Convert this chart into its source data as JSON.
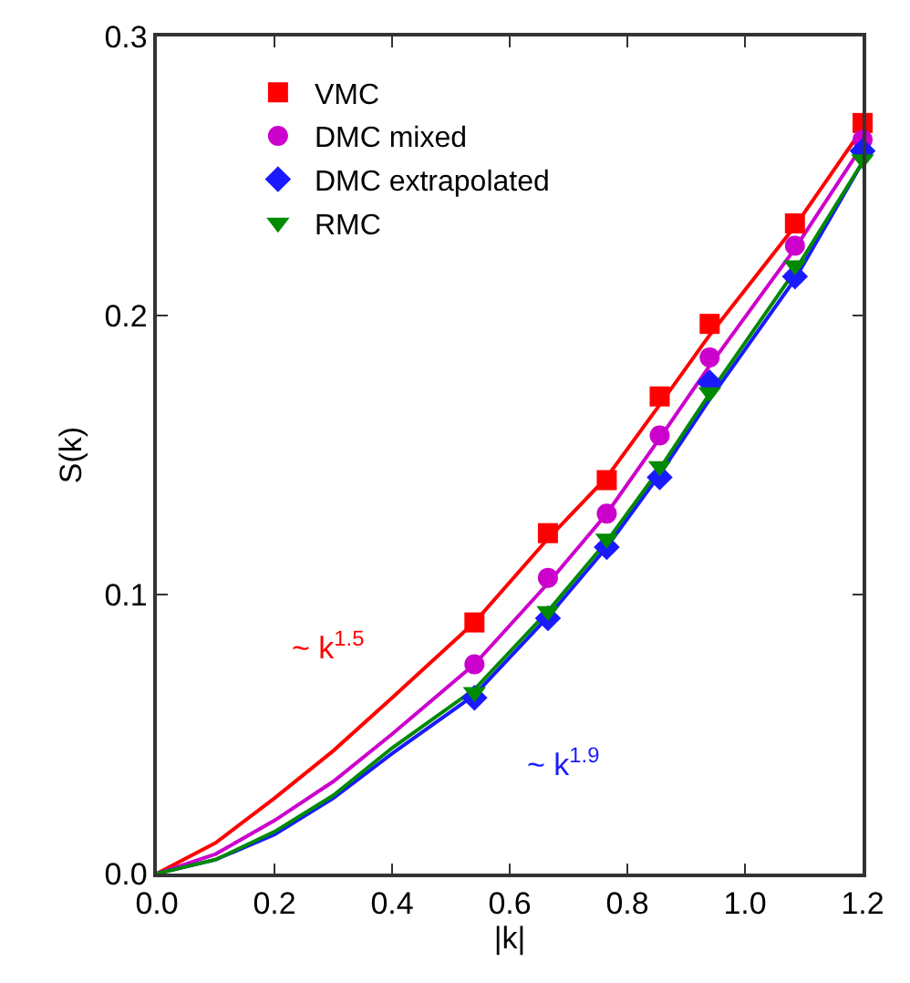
{
  "chart_data": {
    "type": "scatter",
    "xlabel": "|k|",
    "ylabel": "S(k)",
    "xlim": [
      0,
      1.2
    ],
    "ylim": [
      0,
      0.3
    ],
    "xticks": [
      {
        "value": 0,
        "label": "0.0"
      },
      {
        "value": 0.2,
        "label": "0.2"
      },
      {
        "value": 0.4,
        "label": "0.4"
      },
      {
        "value": 0.6,
        "label": "0.6"
      },
      {
        "value": 0.8,
        "label": "0.8"
      },
      {
        "value": 1.0,
        "label": "1.0"
      },
      {
        "value": 1.2,
        "label": "1.2"
      }
    ],
    "yticks": [
      {
        "value": 0,
        "label": "0.0"
      },
      {
        "value": 0.1,
        "label": "0.1"
      },
      {
        "value": 0.2,
        "label": "0.2"
      },
      {
        "value": 0.3,
        "label": "0.3"
      }
    ],
    "legend": "top left",
    "x": [
      0.54,
      0.665,
      0.765,
      0.855,
      0.94,
      1.085,
      1.2
    ],
    "series": [
      {
        "type": "line",
        "color": "#ff0000",
        "x": [
          0,
          0.1,
          0.2,
          0.3,
          0.4,
          0.54,
          0.665,
          0.765,
          0.855,
          0.94,
          1.085,
          1.2
        ],
        "values": [
          0,
          0.011,
          0.027,
          0.044,
          0.063,
          0.09,
          0.12,
          0.142,
          0.168,
          0.193,
          0.232,
          0.267
        ]
      },
      {
        "type": "line",
        "color": "#cc00cc",
        "x": [
          0,
          0.1,
          0.2,
          0.3,
          0.4,
          0.54,
          0.665,
          0.765,
          0.855,
          0.94,
          1.085,
          1.2
        ],
        "values": [
          0,
          0.007,
          0.019,
          0.033,
          0.05,
          0.075,
          0.104,
          0.129,
          0.156,
          0.182,
          0.224,
          0.261
        ]
      },
      {
        "type": "line",
        "color": "#1a1aff",
        "x": [
          0,
          0.1,
          0.2,
          0.3,
          0.4,
          0.54,
          0.665,
          0.765,
          0.855,
          0.94,
          1.085,
          1.2
        ],
        "values": [
          0,
          0.005,
          0.014,
          0.027,
          0.043,
          0.064,
          0.092,
          0.117,
          0.143,
          0.17,
          0.213,
          0.255
        ]
      },
      {
        "type": "line",
        "color": "#008a00",
        "x": [
          0,
          0.1,
          0.2,
          0.3,
          0.4,
          0.54,
          0.665,
          0.765,
          0.855,
          0.94,
          1.085,
          1.2
        ],
        "values": [
          0,
          0.005,
          0.015,
          0.028,
          0.045,
          0.066,
          0.094,
          0.119,
          0.145,
          0.172,
          0.216,
          0.255
        ]
      },
      {
        "name": "VMC",
        "color": "#ff0000",
        "marker": "square",
        "values": [
          0.09,
          0.122,
          0.141,
          0.171,
          0.197,
          0.233,
          0.269
        ]
      },
      {
        "name": "DMC mixed",
        "color": "#cc00cc",
        "marker": "circle",
        "values": [
          0.075,
          0.106,
          0.129,
          0.157,
          0.185,
          0.225,
          0.263
        ]
      },
      {
        "name": "DMC extrapolated",
        "color": "#1a1aff",
        "marker": "diamond",
        "values": [
          0.063,
          0.0915,
          0.117,
          0.142,
          0.176,
          0.214,
          0.259
        ]
      },
      {
        "name": "RMC",
        "color": "#008a00",
        "marker": "triangle",
        "values": [
          0.065,
          0.094,
          0.12,
          0.146,
          0.1725,
          0.218,
          0.256
        ]
      }
    ],
    "annotations": [
      "~ k$^{1.5}$",
      "~ k$^{1.9}$"
    ]
  }
}
